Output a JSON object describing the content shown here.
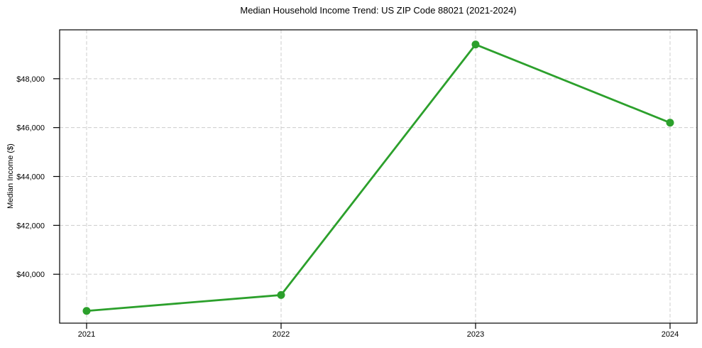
{
  "chart_data": {
    "type": "line",
    "title": "Median Household Income Trend: US ZIP Code 88021 (2021-2024)",
    "ylabel": "Median Income ($)",
    "xlabel": "",
    "categories": [
      "2021",
      "2022",
      "2023",
      "2024"
    ],
    "series": [
      {
        "values": [
          38500,
          39150,
          49400,
          46200
        ],
        "color": "#2ca02c",
        "marker": "circle"
      }
    ],
    "ylim": [
      38000,
      50000
    ],
    "yticks": [
      40000,
      42000,
      44000,
      46000,
      48000
    ],
    "ytick_labels": [
      "$40,000",
      "$42,000",
      "$44,000",
      "$46,000",
      "$48,000"
    ],
    "grid": {
      "show": true,
      "line_style": "dashed",
      "color": "#cccccc"
    },
    "legend": {
      "visible": false
    },
    "axis_color": "#000000",
    "background": "#ffffff"
  }
}
